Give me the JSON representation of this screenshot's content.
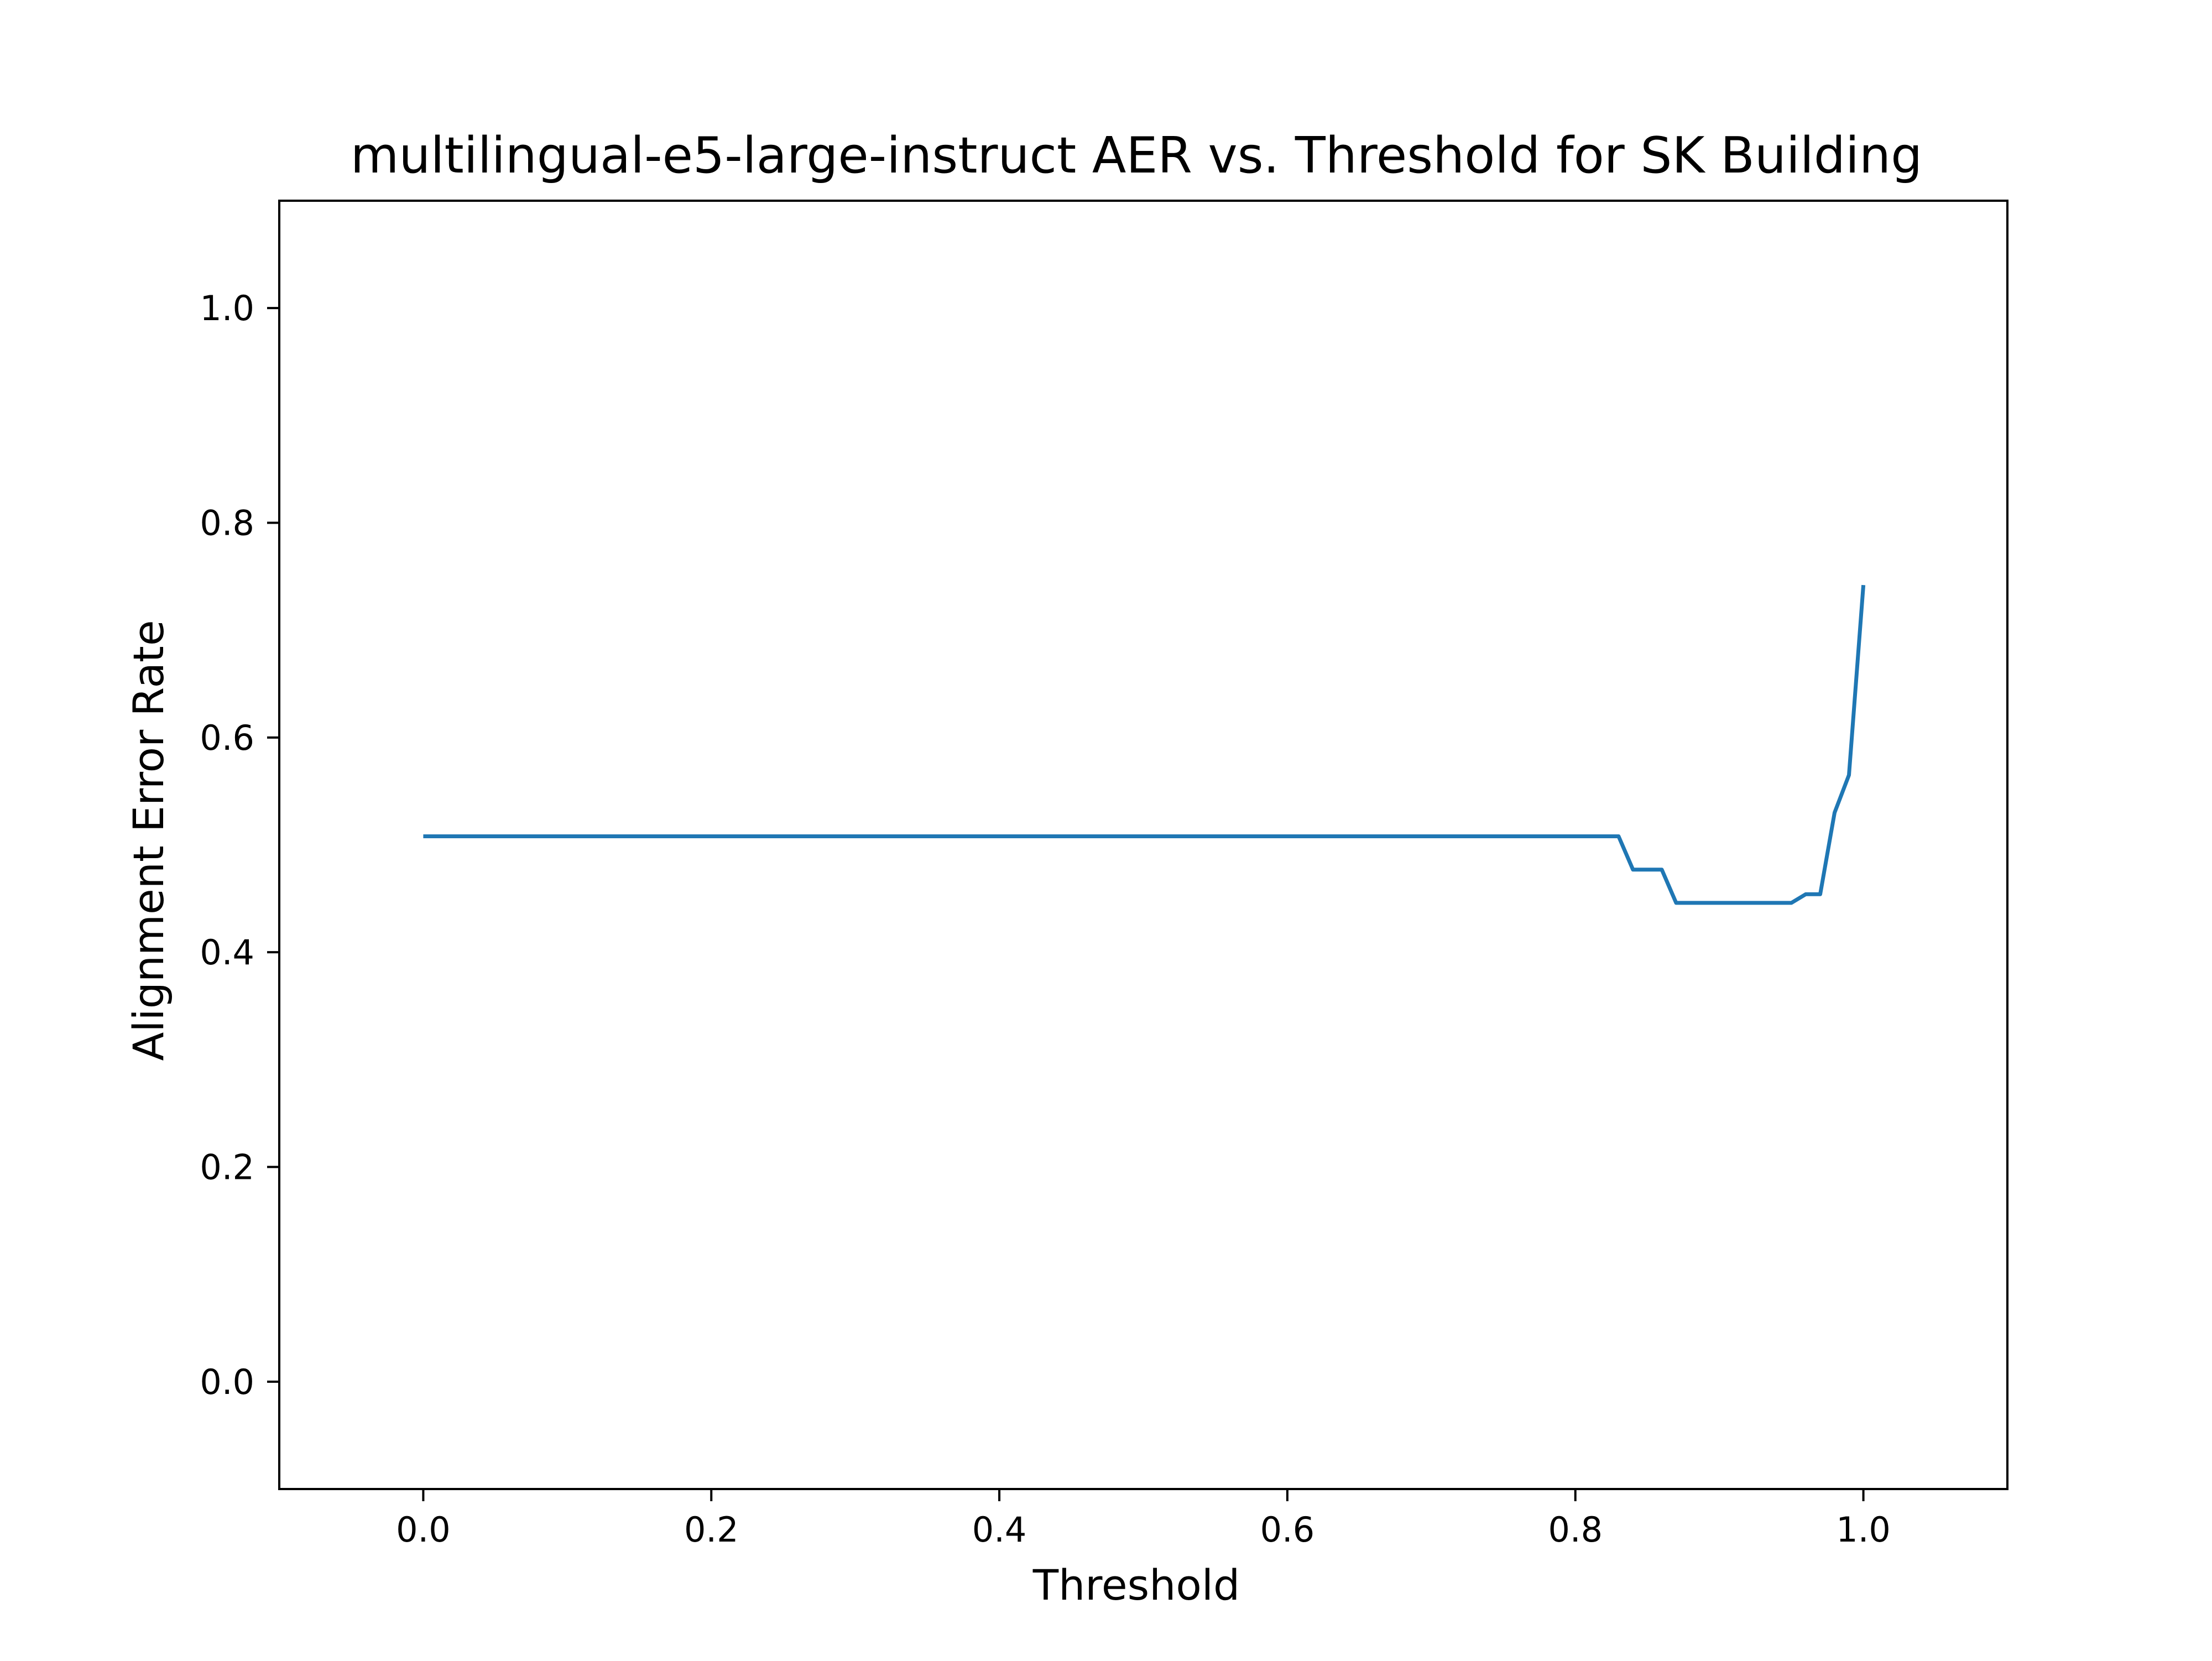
{
  "chart_data": {
    "type": "line",
    "title": "multilingual-e5-large-instruct AER vs. Threshold for SK Building",
    "xlabel": "Threshold",
    "ylabel": "Alignment Error Rate",
    "xlim": [
      -0.1,
      1.1
    ],
    "ylim": [
      -0.1,
      1.1
    ],
    "xticks": [
      "0.0",
      "0.2",
      "0.4",
      "0.6",
      "0.8",
      "1.0"
    ],
    "yticks": [
      "0.0",
      "0.2",
      "0.4",
      "0.6",
      "0.8",
      "1.0"
    ],
    "grid": false,
    "legend": "none",
    "series": [
      {
        "color": "#1f77b4",
        "x": [
          0.0,
          0.83,
          0.84,
          0.85,
          0.86,
          0.87,
          0.88,
          0.89,
          0.9,
          0.91,
          0.92,
          0.93,
          0.94,
          0.95,
          0.96,
          0.97,
          0.98,
          0.99,
          1.0
        ],
        "y": [
          0.508,
          0.508,
          0.477,
          0.477,
          0.477,
          0.446,
          0.446,
          0.446,
          0.446,
          0.446,
          0.446,
          0.446,
          0.446,
          0.446,
          0.454,
          0.454,
          0.53,
          0.565,
          0.742
        ]
      }
    ]
  }
}
